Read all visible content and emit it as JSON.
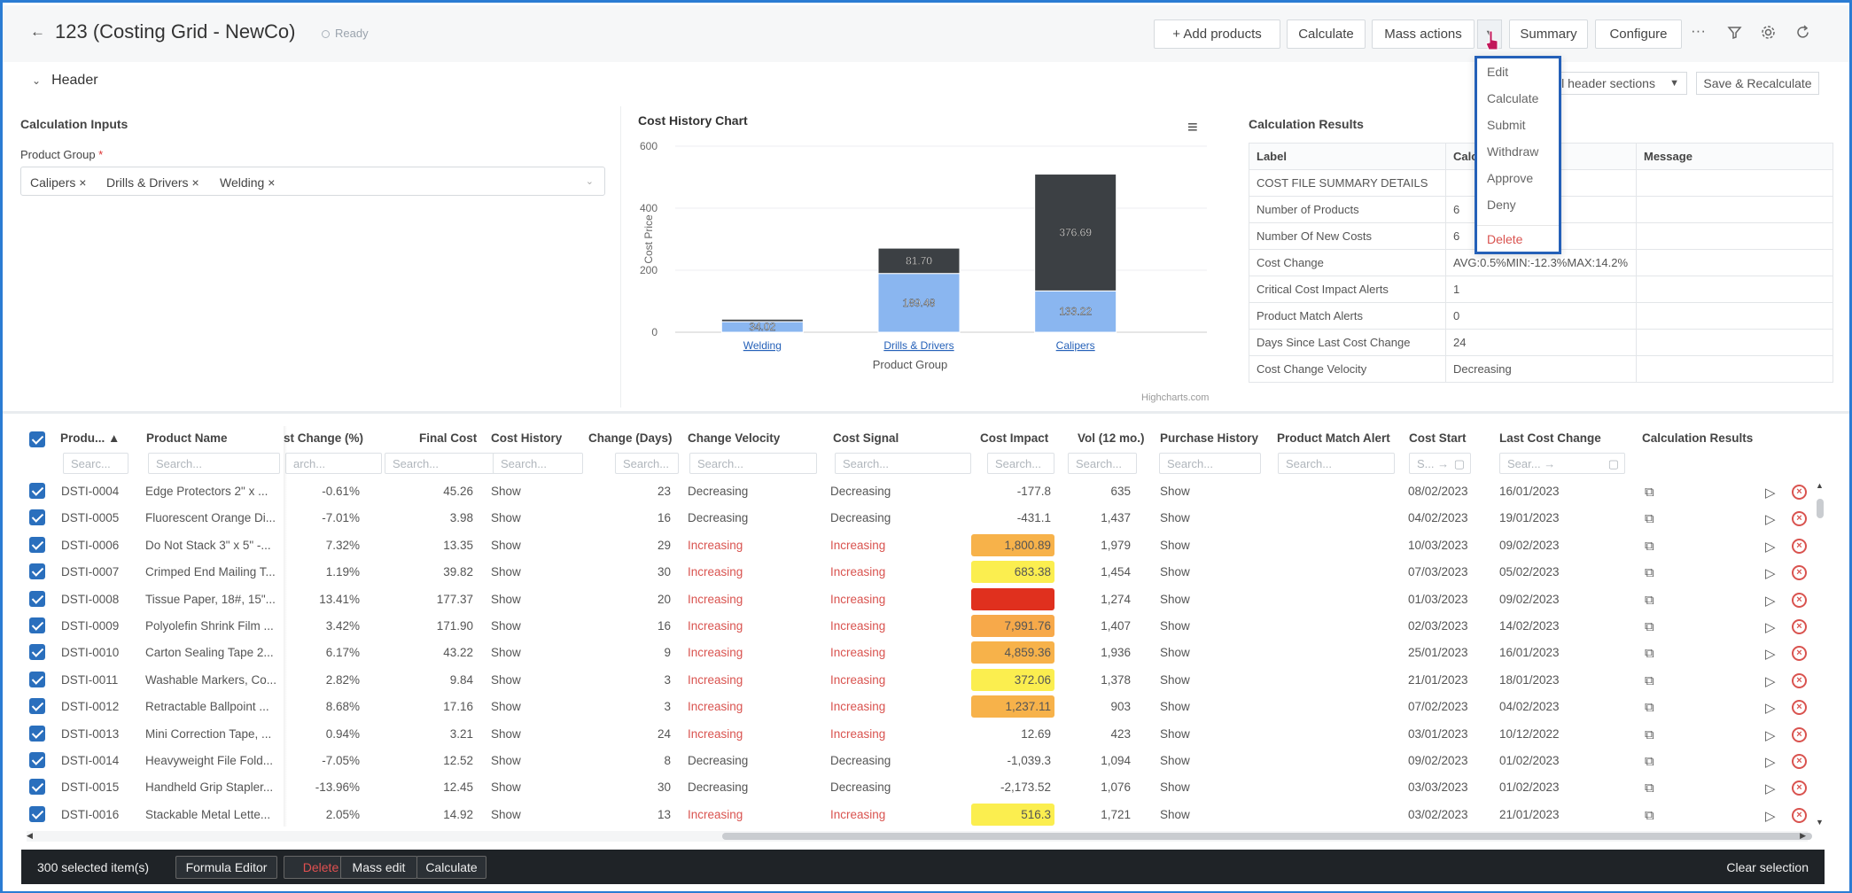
{
  "page": {
    "title": "123 (Costing Grid - NewCo)",
    "status": "Ready"
  },
  "toolbar": {
    "add_products": "+ Add products",
    "calculate": "Calculate",
    "mass_actions": "Mass actions",
    "summary": "Summary",
    "configure": "Configure",
    "more": "···"
  },
  "header": {
    "toggle_label": "Header",
    "sections_label": "ll header sections",
    "save_recalc": "Save & Recalculate"
  },
  "mass_actions_menu": {
    "items": [
      "Edit",
      "Calculate",
      "Submit",
      "Withdraw",
      "Approve",
      "Deny",
      "Delete"
    ]
  },
  "inputs": {
    "title": "Calculation Inputs",
    "product_group_label": "Product Group",
    "required_mark": "*",
    "chips": [
      "Calipers ×",
      "Drills & Drivers ×",
      "Welding ×"
    ]
  },
  "chart_data": {
    "type": "bar",
    "stacked": true,
    "title": "Cost History Chart",
    "xlabel": "Product Group",
    "ylabel": "Cost Price",
    "ylim": [
      0,
      600
    ],
    "yticks": [
      "0",
      "200",
      "400",
      "600"
    ],
    "categories": [
      "Welding",
      "Drills & Drivers",
      "Calipers"
    ],
    "series": [
      {
        "values": [
          34.02,
          189.48,
          133.22
        ],
        "color": "#8ab6f0"
      },
      {
        "values": [
          8,
          81.7,
          376.69
        ],
        "color": "#3c4044"
      }
    ],
    "data_labels_top": [
      "",
      "81.70",
      "376.69"
    ],
    "data_labels_bottom": [
      "34.02",
      "189.48",
      "133.22"
    ],
    "credits": "Highcharts.com"
  },
  "results": {
    "title": "Calculation Results",
    "headers": [
      "Label",
      "Calc",
      "Message"
    ],
    "rows": [
      [
        "COST FILE SUMMARY DETAILS",
        ""
      ],
      [
        "Number of Products",
        "6"
      ],
      [
        "Number Of New Costs",
        "6"
      ],
      [
        "Cost Change",
        "AVG:0.5%MIN:-12.3%MAX:14.2%"
      ],
      [
        "Critical Cost Impact Alerts",
        "1"
      ],
      [
        "Product Match Alerts",
        "0"
      ],
      [
        "Days Since Last Cost Change",
        "24"
      ],
      [
        "Cost Change Velocity",
        "Decreasing"
      ]
    ]
  },
  "grid": {
    "headers": {
      "product": "Produ... ▲",
      "name": "Product Name",
      "change_pct": "st Change (%)",
      "final_cost": "Final Cost",
      "cost_history": "Cost History",
      "change_days": "Change (Days)",
      "velocity": "Change Velocity",
      "signal": "Cost Signal",
      "impact": "Cost Impact",
      "vol": "Vol (12 mo.)",
      "purchase": "Purchase History",
      "match": "Product Match Alert",
      "cost_start": "Cost Start",
      "last_change": "Last Cost Change",
      "calc_results": "Calculation Results"
    },
    "search_placeholder": "Search...",
    "search_short": "Searc...",
    "search_cut": "arch...",
    "search_date_a": "S... →",
    "search_date_b": "Sear... →",
    "rows": [
      {
        "id": "DSTI-0004",
        "name": "Edge Protectors 2\" x ...",
        "pct": "-0.61%",
        "final": "45.26",
        "hist": "Show",
        "days": "23",
        "vel": "Decreasing",
        "sig": "Decreasing",
        "impact": "-177.8",
        "ic": "",
        "vol": "635",
        "ph": "Show",
        "start": "08/02/2023",
        "last": "16/01/2023"
      },
      {
        "id": "DSTI-0005",
        "name": "Fluorescent Orange Di...",
        "pct": "-7.01%",
        "final": "3.98",
        "hist": "Show",
        "days": "16",
        "vel": "Decreasing",
        "sig": "Decreasing",
        "impact": "-431.1",
        "ic": "",
        "vol": "1,437",
        "ph": "Show",
        "start": "04/02/2023",
        "last": "19/01/2023"
      },
      {
        "id": "DSTI-0006",
        "name": "Do Not Stack 3\" x 5\" -...",
        "pct": "7.32%",
        "final": "13.35",
        "hist": "Show",
        "days": "29",
        "vel": "Increasing",
        "sig": "Increasing",
        "impact": "1,800.89",
        "ic": "#f7b24a",
        "vol": "1,979",
        "ph": "Show",
        "start": "10/03/2023",
        "last": "09/02/2023"
      },
      {
        "id": "DSTI-0007",
        "name": "Crimped End Mailing T...",
        "pct": "1.19%",
        "final": "39.82",
        "hist": "Show",
        "days": "30",
        "vel": "Increasing",
        "sig": "Increasing",
        "impact": "683.38",
        "ic": "#fbee4f",
        "vol": "1,454",
        "ph": "Show",
        "start": "07/03/2023",
        "last": "05/02/2023"
      },
      {
        "id": "DSTI-0008",
        "name": "Tissue Paper, 18#, 15\"...",
        "pct": "13.41%",
        "final": "177.37",
        "hist": "Show",
        "days": "20",
        "vel": "Increasing",
        "sig": "Increasing",
        "impact": "",
        "ic": "#e0301e",
        "vol": "1,274",
        "ph": "Show",
        "start": "01/03/2023",
        "last": "09/02/2023"
      },
      {
        "id": "DSTI-0009",
        "name": "Polyolefin Shrink Film ...",
        "pct": "3.42%",
        "final": "171.90",
        "hist": "Show",
        "days": "16",
        "vel": "Increasing",
        "sig": "Increasing",
        "impact": "7,991.76",
        "ic": "#f7a94a",
        "vol": "1,407",
        "ph": "Show",
        "start": "02/03/2023",
        "last": "14/02/2023"
      },
      {
        "id": "DSTI-0010",
        "name": "Carton Sealing Tape 2...",
        "pct": "6.17%",
        "final": "43.22",
        "hist": "Show",
        "days": "9",
        "vel": "Increasing",
        "sig": "Increasing",
        "impact": "4,859.36",
        "ic": "#f7b24a",
        "vol": "1,936",
        "ph": "Show",
        "start": "25/01/2023",
        "last": "16/01/2023"
      },
      {
        "id": "DSTI-0011",
        "name": "Washable Markers, Co...",
        "pct": "2.82%",
        "final": "9.84",
        "hist": "Show",
        "days": "3",
        "vel": "Increasing",
        "sig": "Increasing",
        "impact": "372.06",
        "ic": "#fbee4f",
        "vol": "1,378",
        "ph": "Show",
        "start": "21/01/2023",
        "last": "18/01/2023"
      },
      {
        "id": "DSTI-0012",
        "name": "Retractable Ballpoint ...",
        "pct": "8.68%",
        "final": "17.16",
        "hist": "Show",
        "days": "3",
        "vel": "Increasing",
        "sig": "Increasing",
        "impact": "1,237.11",
        "ic": "#f7b24a",
        "vol": "903",
        "ph": "Show",
        "start": "07/02/2023",
        "last": "04/02/2023"
      },
      {
        "id": "DSTI-0013",
        "name": "Mini Correction Tape, ...",
        "pct": "0.94%",
        "final": "3.21",
        "hist": "Show",
        "days": "24",
        "vel": "Increasing",
        "sig": "Increasing",
        "impact": "12.69",
        "ic": "",
        "vol": "423",
        "ph": "Show",
        "start": "03/01/2023",
        "last": "10/12/2022"
      },
      {
        "id": "DSTI-0014",
        "name": "Heavyweight File Fold...",
        "pct": "-7.05%",
        "final": "12.52",
        "hist": "Show",
        "days": "8",
        "vel": "Decreasing",
        "sig": "Decreasing",
        "impact": "-1,039.3",
        "ic": "",
        "vol": "1,094",
        "ph": "Show",
        "start": "09/02/2023",
        "last": "01/02/2023"
      },
      {
        "id": "DSTI-0015",
        "name": "Handheld Grip Stapler...",
        "pct": "-13.96%",
        "final": "12.45",
        "hist": "Show",
        "days": "30",
        "vel": "Decreasing",
        "sig": "Decreasing",
        "impact": "-2,173.52",
        "ic": "",
        "vol": "1,076",
        "ph": "Show",
        "start": "03/03/2023",
        "last": "01/02/2023"
      },
      {
        "id": "DSTI-0016",
        "name": "Stackable Metal Lette...",
        "pct": "2.05%",
        "final": "14.92",
        "hist": "Show",
        "days": "13",
        "vel": "Increasing",
        "sig": "Increasing",
        "impact": "516.3",
        "ic": "#fbee4f",
        "vol": "1,721",
        "ph": "Show",
        "start": "03/02/2023",
        "last": "21/01/2023"
      }
    ]
  },
  "bottombar": {
    "count": "300 selected item(s)",
    "formula_editor": "Formula Editor",
    "delete": "Delete",
    "mass_edit": "Mass edit",
    "calculate": "Calculate",
    "clear": "Clear selection"
  }
}
